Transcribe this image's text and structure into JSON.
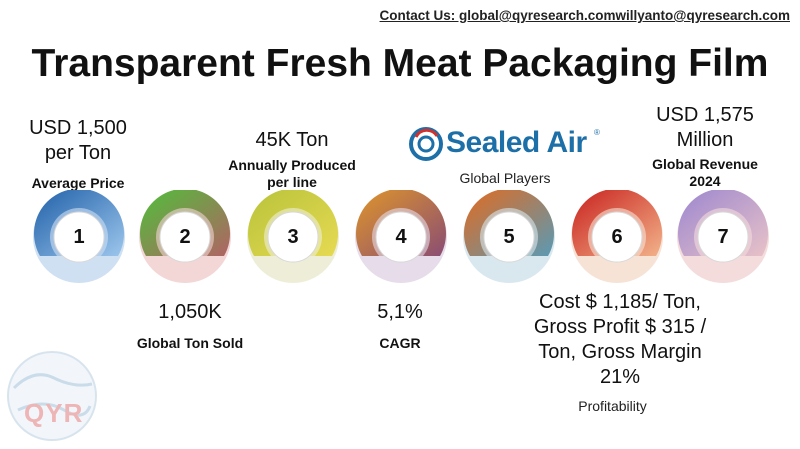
{
  "contact": "Contact Us: global@qyresearch.comwillyanto@qyresearch.com",
  "title": "Transparent Fresh Meat Packaging Film",
  "items": [
    {
      "num": "1",
      "value_lines": [
        "USD 1,500",
        "per Ton"
      ],
      "label": "Average Price",
      "colors": [
        "#1f5fa8",
        "#9cc6ec"
      ],
      "base": "#cfe0f3"
    },
    {
      "num": "2",
      "value": "1,050K",
      "label": "Global Ton Sold",
      "colors": [
        "#4fbf3a",
        "#b06464"
      ],
      "base": "#f3d6d6"
    },
    {
      "num": "3",
      "value": "45K Ton",
      "label_lines": [
        "Annually Produced",
        "per line"
      ],
      "colors": [
        "#b8c33a",
        "#e6da52"
      ],
      "base": "#eeeed8"
    },
    {
      "num": "4",
      "value": "5,1%",
      "label": "CAGR",
      "colors": [
        "#e0962a",
        "#8a4d73"
      ],
      "base": "#e6dcea"
    },
    {
      "num": "5",
      "value": "",
      "label": "Global Players",
      "colors": [
        "#e36a1e",
        "#5a9ab4"
      ],
      "base": "#d9e8ef"
    },
    {
      "num": "6",
      "value_lines": [
        "Cost $ 1,185/ Ton,",
        "Gross Profit $ 315 /",
        "Ton, Gross Margin",
        "21%"
      ],
      "label": "Profitability",
      "colors": [
        "#c8201c",
        "#f2b28a"
      ],
      "base": "#f7e2d6"
    },
    {
      "num": "7",
      "value_lines": [
        "USD 1,575",
        "Million"
      ],
      "label_lines": [
        "Global Revenue",
        "2024"
      ],
      "colors": [
        "#9b86cf",
        "#e8c2c8"
      ],
      "base": "#f4dcdc"
    }
  ],
  "logo": {
    "text": "Sealed Air",
    "mark": "®",
    "color": "#1d6fa8",
    "accent": "#d0312d"
  },
  "watermark": {
    "text": "QYR"
  }
}
